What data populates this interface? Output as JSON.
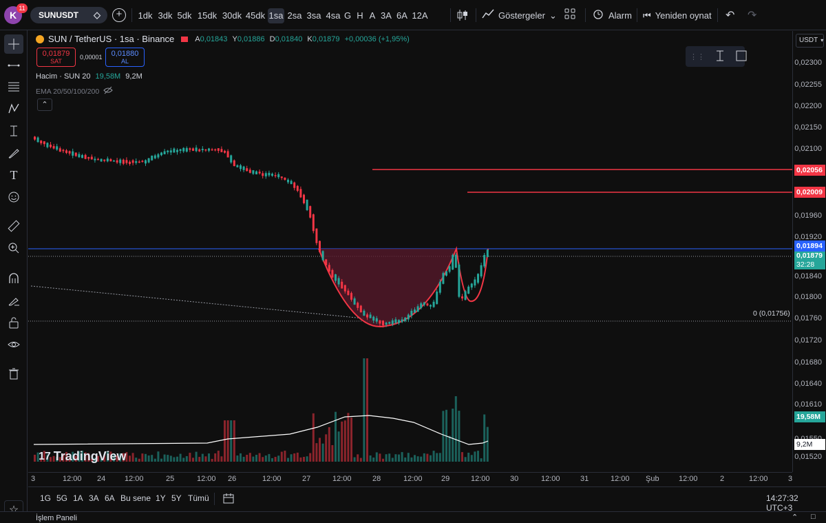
{
  "header": {
    "avatar_letter": "K",
    "notification_count": "11",
    "symbol": "SUNUSDT",
    "timeframes": [
      "1dk",
      "3dk",
      "5dk",
      "15dk",
      "30dk",
      "45dk",
      "1sa",
      "2sa",
      "3sa",
      "4sa",
      "G",
      "H",
      "A",
      "3A",
      "6A",
      "12A"
    ],
    "active_timeframe": "1sa",
    "indicators_label": "Göstergeler",
    "alarm_label": "Alarm",
    "replay_label": "Yeniden oynat"
  },
  "legend": {
    "title": "SUN / TetherUS · 1sa · Binance",
    "open_label": "A",
    "open": "0,01843",
    "high_label": "Y",
    "high": "0,01886",
    "low_label": "D",
    "low": "0,01840",
    "close_label": "K",
    "close": "0,01879",
    "change": "+0,00036 (+1,95%)",
    "sell_price": "0,01879",
    "sell_label": "SAT",
    "spread": "0,00001",
    "buy_price": "0,01880",
    "buy_label": "AL",
    "volume_label": "Hacim · SUN 20",
    "volume_value": "19,58M",
    "volume_ma": "9,2M",
    "ema_label": "EMA 20/50/100/200"
  },
  "price_axis": {
    "currency": "USDT",
    "ticks": [
      "0,02300",
      "0,02255",
      "0,02200",
      "0,02150",
      "0,02100",
      "0,01960",
      "0,01920",
      "0,01840",
      "0,01800",
      "0,01760",
      "0,01720",
      "0,01680",
      "0,01640",
      "0,01610",
      "0,01550",
      "0,01520"
    ],
    "tags": {
      "resistance_1": "0,02056",
      "resistance_2": "0,02009",
      "current_line": "0,01894",
      "last_price": "0,01879",
      "countdown": "32:28",
      "volume": "19,58M",
      "volume_ma": "9,2M"
    },
    "fib_label": "0 (0,01756)"
  },
  "time_axis": [
    "3",
    "12:00",
    "24",
    "12:00",
    "25",
    "12:00",
    "26",
    "12:00",
    "27",
    "12:00",
    "28",
    "12:00",
    "29",
    "12:00",
    "30",
    "12:00",
    "31",
    "12:00",
    "Şub",
    "12:00",
    "2",
    "12:00",
    "3"
  ],
  "bottom": {
    "ranges": [
      "1G",
      "5G",
      "1A",
      "3A",
      "6A",
      "Bu sene",
      "1Y",
      "5Y",
      "Tümü"
    ],
    "clock": "14:27:32 UTC+3",
    "panel_label": "İşlem Paneli"
  },
  "brand": "TradingView",
  "colors": {
    "up": "#26a69a",
    "down": "#f23645",
    "accent_blue": "#2962ff",
    "pattern_fill": "#5a1a2c"
  }
}
